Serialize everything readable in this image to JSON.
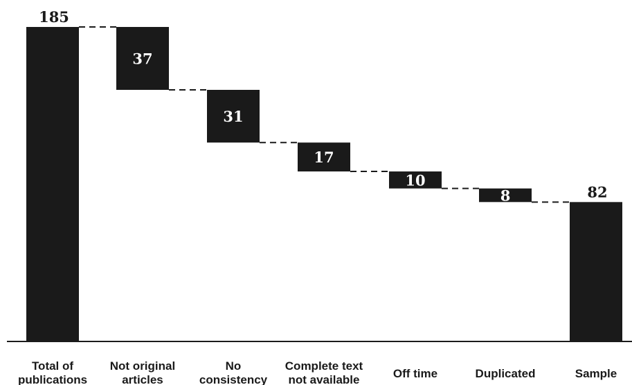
{
  "chart_data": {
    "type": "bar",
    "subtype": "waterfall",
    "categories": [
      [
        "Total of",
        "publications"
      ],
      [
        "Not original",
        "articles"
      ],
      [
        "No",
        "consistency"
      ],
      [
        "Complete text",
        "not available"
      ],
      [
        "Off time"
      ],
      [
        "Duplicated"
      ],
      [
        "Sample"
      ]
    ],
    "values": [
      185,
      37,
      31,
      17,
      10,
      8,
      82
    ],
    "kinds": [
      "total",
      "decrease",
      "decrease",
      "decrease",
      "decrease",
      "decrease",
      "total"
    ],
    "value_labels": [
      "185",
      "37",
      "31",
      "17",
      "10",
      "8",
      "82"
    ],
    "title": "",
    "xlabel": "",
    "ylabel": "",
    "ylim": [
      0,
      185
    ],
    "grid": false,
    "connectors": "dashed",
    "bar_color": "#1a1a1a",
    "label_color_inside": "#ffffff",
    "label_color_outside": "#1a1a1a"
  }
}
